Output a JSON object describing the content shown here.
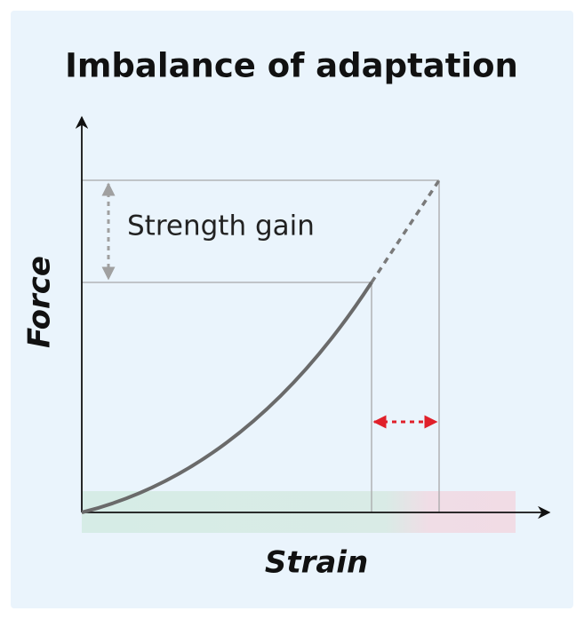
{
  "title": "Imbalance of adaptation",
  "annotation": "Strength gain",
  "y_axis_label": "Force",
  "x_axis_label": "Strain"
}
